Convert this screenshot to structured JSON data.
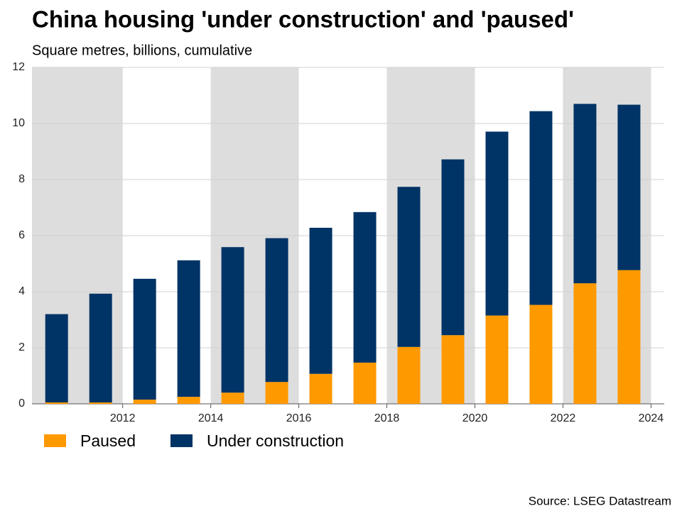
{
  "chart_data": {
    "type": "stacked_bar",
    "title": "China housing 'under construction' and 'paused'",
    "subtitle": "Square metres, billions, cumulative",
    "source": "Source: LSEG Datastream",
    "x": [
      2010.5,
      2011.5,
      2012.5,
      2013.5,
      2014.5,
      2015.5,
      2016.5,
      2017.5,
      2018.5,
      2019.5,
      2020.5,
      2021.5,
      2022.5,
      2023.5
    ],
    "series": [
      {
        "name": "Paused",
        "color": "#ff9900",
        "values": [
          0.05,
          0.05,
          0.15,
          0.25,
          0.4,
          0.78,
          1.07,
          1.47,
          2.03,
          2.45,
          3.15,
          3.53,
          4.3,
          4.77
        ]
      },
      {
        "name": "Under construction",
        "color": "#003366",
        "values": [
          3.15,
          3.88,
          4.31,
          4.87,
          5.19,
          5.13,
          5.21,
          5.37,
          5.71,
          6.27,
          6.56,
          6.91,
          6.4,
          5.9
        ]
      }
    ],
    "xlim": [
      2009.94,
      2024.3
    ],
    "xticks": [
      2012,
      2014,
      2016,
      2018,
      2020,
      2022,
      2024
    ],
    "ylim": [
      0,
      12
    ],
    "yticks": [
      0,
      2,
      4,
      6,
      8,
      10,
      12
    ],
    "grid": true,
    "legend": "bottom"
  }
}
